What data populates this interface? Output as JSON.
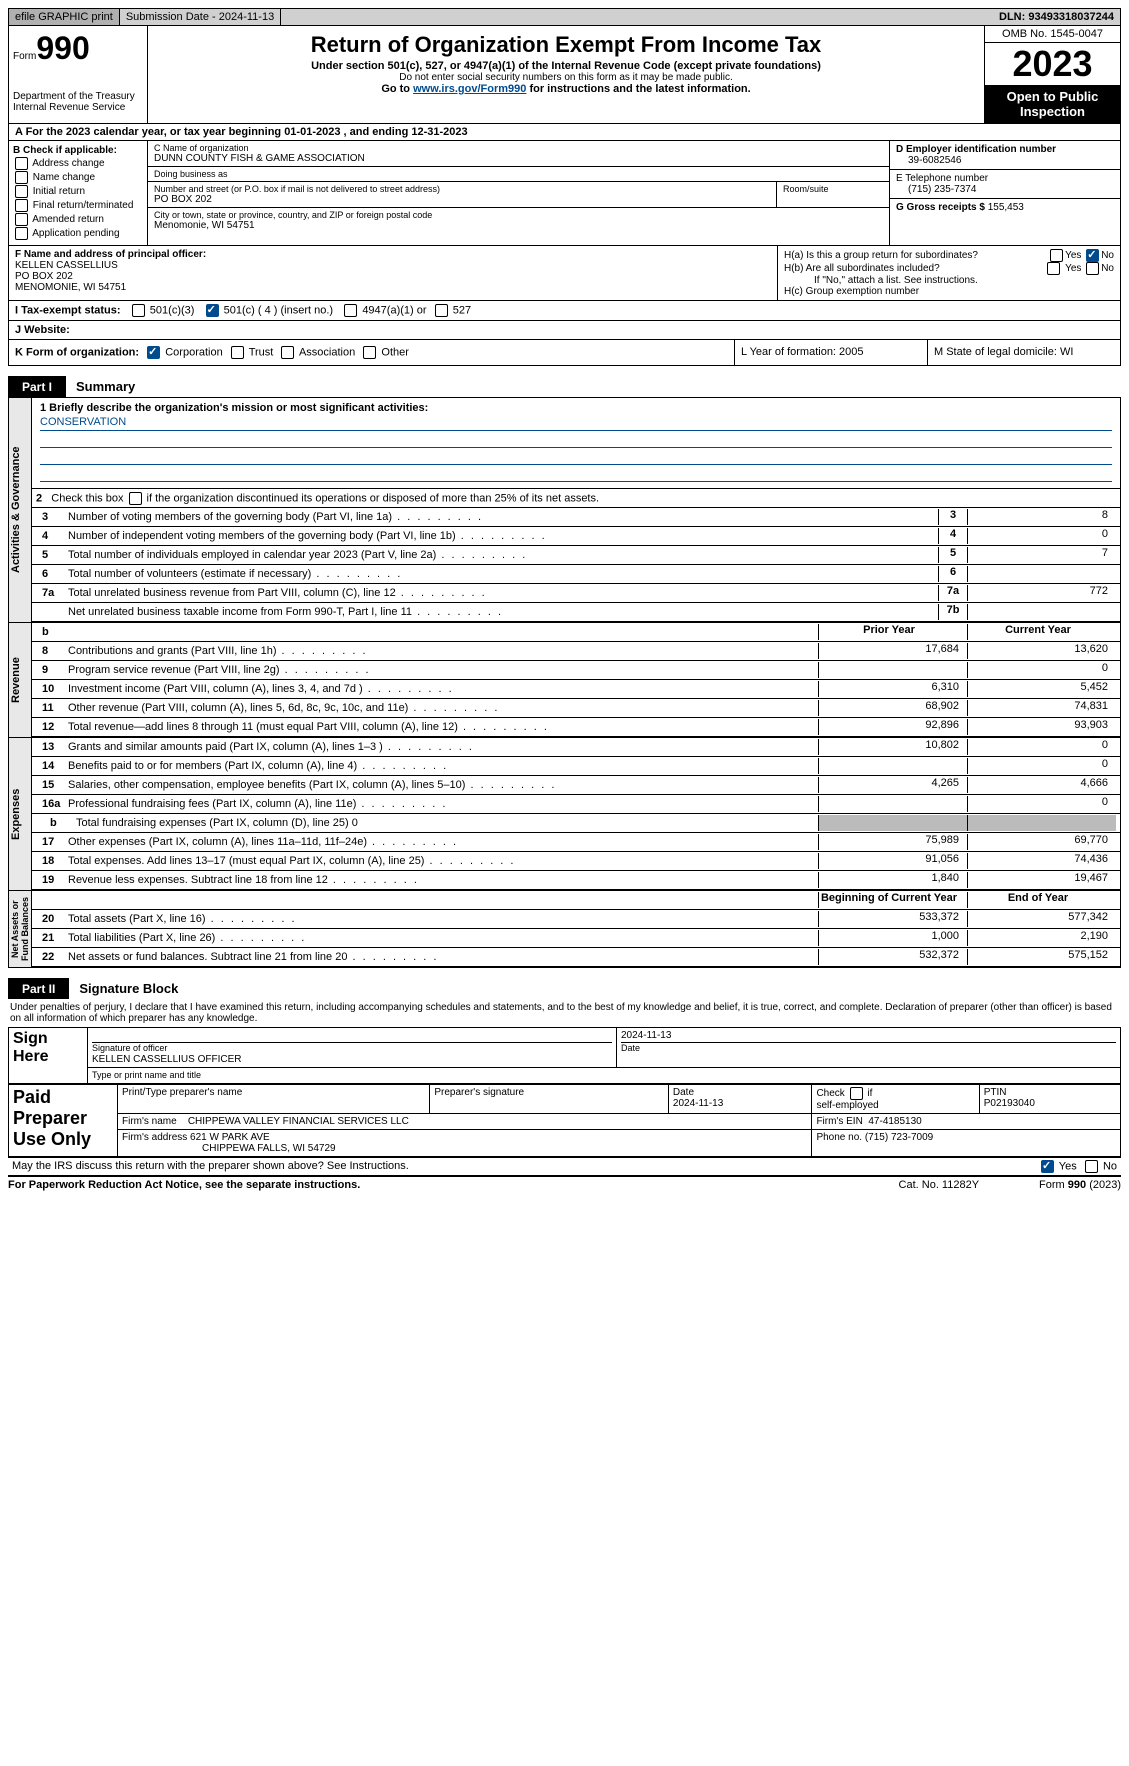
{
  "topbar": {
    "efile": "efile GRAPHIC print",
    "submission": "Submission Date - 2024-11-13",
    "dln": "DLN: 93493318037244"
  },
  "header": {
    "form_prefix": "Form",
    "form_no": "990",
    "dept": "Department of the Treasury\nInternal Revenue Service",
    "title": "Return of Organization Exempt From Income Tax",
    "sub": "Under section 501(c), 527, or 4947(a)(1) of the Internal Revenue Code (except private foundations)",
    "ssn": "Do not enter social security numbers on this form as it may be made public.",
    "goto": "Go to ",
    "link": "www.irs.gov/Form990",
    "goto2": " for instructions and the latest information.",
    "omb": "OMB No. 1545-0047",
    "year": "2023",
    "open": "Open to Public Inspection"
  },
  "lineA": "A  For the 2023 calendar year, or tax year beginning 01-01-2023   , and ending 12-31-2023",
  "boxB": {
    "title": "B Check if applicable:",
    "items": [
      "Address change",
      "Name change",
      "Initial return",
      "Final return/terminated",
      "Amended return",
      "Application pending"
    ]
  },
  "boxC": {
    "name_label": "C Name of organization",
    "name": "DUNN COUNTY FISH & GAME ASSOCIATION",
    "dba_label": "Doing business as",
    "street_label": "Number and street (or P.O. box if mail is not delivered to street address)",
    "room_label": "Room/suite",
    "street": "PO BOX 202",
    "city_label": "City or town, state or province, country, and ZIP or foreign postal code",
    "city": "Menomonie, WI  54751"
  },
  "boxD": {
    "label": "D Employer identification number",
    "value": "39-6082546"
  },
  "boxE": {
    "label": "E Telephone number",
    "value": "(715) 235-7374"
  },
  "boxG": {
    "label": "G Gross receipts $",
    "value": "155,453"
  },
  "boxF": {
    "label": "F  Name and address of principal officer:",
    "name": "KELLEN CASSELLIUS",
    "addr1": "PO BOX 202",
    "addr2": "MENOMONIE, WI  54751"
  },
  "boxH": {
    "a": "H(a)  Is this a group return for subordinates?",
    "a_no_checked": true,
    "b": "H(b)  Are all subordinates included?",
    "b_note": "If \"No,\" attach a list. See instructions.",
    "c": "H(c)  Group exemption number"
  },
  "lineI": {
    "label": "I   Tax-exempt status:",
    "opt1": "501(c)(3)",
    "opt2_checked": true,
    "opt2": "501(c) ( 4 ) (insert no.)",
    "opt3": "4947(a)(1) or",
    "opt4": "527"
  },
  "lineJ": "J   Website:",
  "lineK": {
    "label": "K Form of organization:",
    "corp_checked": true,
    "opts": [
      "Corporation",
      "Trust",
      "Association",
      "Other"
    ]
  },
  "lineL": "L Year of formation: 2005",
  "lineM": "M State of legal domicile: WI",
  "part1": {
    "tag": "Part I",
    "title": "Summary"
  },
  "mission": {
    "label": "1   Briefly describe the organization's mission or most significant activities:",
    "text": "CONSERVATION"
  },
  "line2": "2    Check this box      if the organization discontinued its operations or disposed of more than 25% of its net assets.",
  "gov_lines": [
    {
      "n": "3",
      "desc": "Number of voting members of the governing body (Part VI, line 1a)",
      "box": "3",
      "val": "8"
    },
    {
      "n": "4",
      "desc": "Number of independent voting members of the governing body (Part VI, line 1b)",
      "box": "4",
      "val": "0"
    },
    {
      "n": "5",
      "desc": "Total number of individuals employed in calendar year 2023 (Part V, line 2a)",
      "box": "5",
      "val": "7"
    },
    {
      "n": "6",
      "desc": "Total number of volunteers (estimate if necessary)",
      "box": "6",
      "val": ""
    },
    {
      "n": "7a",
      "desc": "Total unrelated business revenue from Part VIII, column (C), line 12",
      "box": "7a",
      "val": "772"
    },
    {
      "n": "",
      "desc": "Net unrelated business taxable income from Form 990-T, Part I, line 11",
      "box": "7b",
      "val": ""
    }
  ],
  "rev_header": {
    "b": "b",
    "prior": "Prior Year",
    "curr": "Current Year"
  },
  "rev_lines": [
    {
      "n": "8",
      "desc": "Contributions and grants (Part VIII, line 1h)",
      "p": "17,684",
      "c": "13,620"
    },
    {
      "n": "9",
      "desc": "Program service revenue (Part VIII, line 2g)",
      "p": "",
      "c": "0"
    },
    {
      "n": "10",
      "desc": "Investment income (Part VIII, column (A), lines 3, 4, and 7d )",
      "p": "6,310",
      "c": "5,452"
    },
    {
      "n": "11",
      "desc": "Other revenue (Part VIII, column (A), lines 5, 6d, 8c, 9c, 10c, and 11e)",
      "p": "68,902",
      "c": "74,831"
    },
    {
      "n": "12",
      "desc": "Total revenue—add lines 8 through 11 (must equal Part VIII, column (A), line 12)",
      "p": "92,896",
      "c": "93,903"
    }
  ],
  "exp_lines": [
    {
      "n": "13",
      "desc": "Grants and similar amounts paid (Part IX, column (A), lines 1–3 )",
      "p": "10,802",
      "c": "0"
    },
    {
      "n": "14",
      "desc": "Benefits paid to or for members (Part IX, column (A), line 4)",
      "p": "",
      "c": "0"
    },
    {
      "n": "15",
      "desc": "Salaries, other compensation, employee benefits (Part IX, column (A), lines 5–10)",
      "p": "4,265",
      "c": "4,666"
    },
    {
      "n": "16a",
      "desc": "Professional fundraising fees (Part IX, column (A), line 11e)",
      "p": "",
      "c": "0"
    },
    {
      "n": "b",
      "desc": "Total fundraising expenses (Part IX, column (D), line 25) 0",
      "p": "GRAY",
      "c": "GRAY",
      "sub": true
    },
    {
      "n": "17",
      "desc": "Other expenses (Part IX, column (A), lines 11a–11d, 11f–24e)",
      "p": "75,989",
      "c": "69,770"
    },
    {
      "n": "18",
      "desc": "Total expenses. Add lines 13–17 (must equal Part IX, column (A), line 25)",
      "p": "91,056",
      "c": "74,436"
    },
    {
      "n": "19",
      "desc": "Revenue less expenses. Subtract line 18 from line 12",
      "p": "1,840",
      "c": "19,467"
    }
  ],
  "na_header": {
    "prior": "Beginning of Current Year",
    "curr": "End of Year"
  },
  "na_lines": [
    {
      "n": "20",
      "desc": "Total assets (Part X, line 16)",
      "p": "533,372",
      "c": "577,342"
    },
    {
      "n": "21",
      "desc": "Total liabilities (Part X, line 26)",
      "p": "1,000",
      "c": "2,190"
    },
    {
      "n": "22",
      "desc": "Net assets or fund balances. Subtract line 21 from line 20",
      "p": "532,372",
      "c": "575,152"
    }
  ],
  "vlabels": {
    "gov": "Activities & Governance",
    "rev": "Revenue",
    "exp": "Expenses",
    "na": "Net Assets or\nFund Balances"
  },
  "part2": {
    "tag": "Part II",
    "title": "Signature Block"
  },
  "perjury": "Under penalties of perjury, I declare that I have examined this return, including accompanying schedules and statements, and to the best of my knowledge and belief, it is true, correct, and complete. Declaration of preparer (other than officer) is based on all information of which preparer has any knowledge.",
  "sign": {
    "here": "Sign Here",
    "date": "2024-11-13",
    "sig_label": "Signature of officer",
    "name": "KELLEN CASSELLIUS  OFFICER",
    "type_label": "Type or print name and title",
    "date_label": "Date"
  },
  "paid": {
    "label": "Paid Preparer Use Only",
    "h_name": "Print/Type preparer's name",
    "h_sig": "Preparer's signature",
    "h_date": "Date",
    "date": "2024-11-13",
    "h_check": "Check       if self-employed",
    "h_ptin": "PTIN",
    "ptin": "P02193040",
    "firm_name_l": "Firm's name",
    "firm_name": "CHIPPEWA VALLEY FINANCIAL SERVICES LLC",
    "firm_ein_l": "Firm's EIN",
    "firm_ein": "47-4185130",
    "firm_addr_l": "Firm's address",
    "firm_addr": "621 W PARK AVE",
    "firm_city": "CHIPPEWA FALLS, WI  54729",
    "phone_l": "Phone no.",
    "phone": "(715) 723-7009"
  },
  "discuss": "May the IRS discuss this return with the preparer shown above? See Instructions.",
  "discuss_yes": true,
  "footer": {
    "pra": "For Paperwork Reduction Act Notice, see the separate instructions.",
    "cat": "Cat. No. 11282Y",
    "form": "Form 990 (2023)"
  },
  "yn": {
    "yes": "Yes",
    "no": "No"
  }
}
